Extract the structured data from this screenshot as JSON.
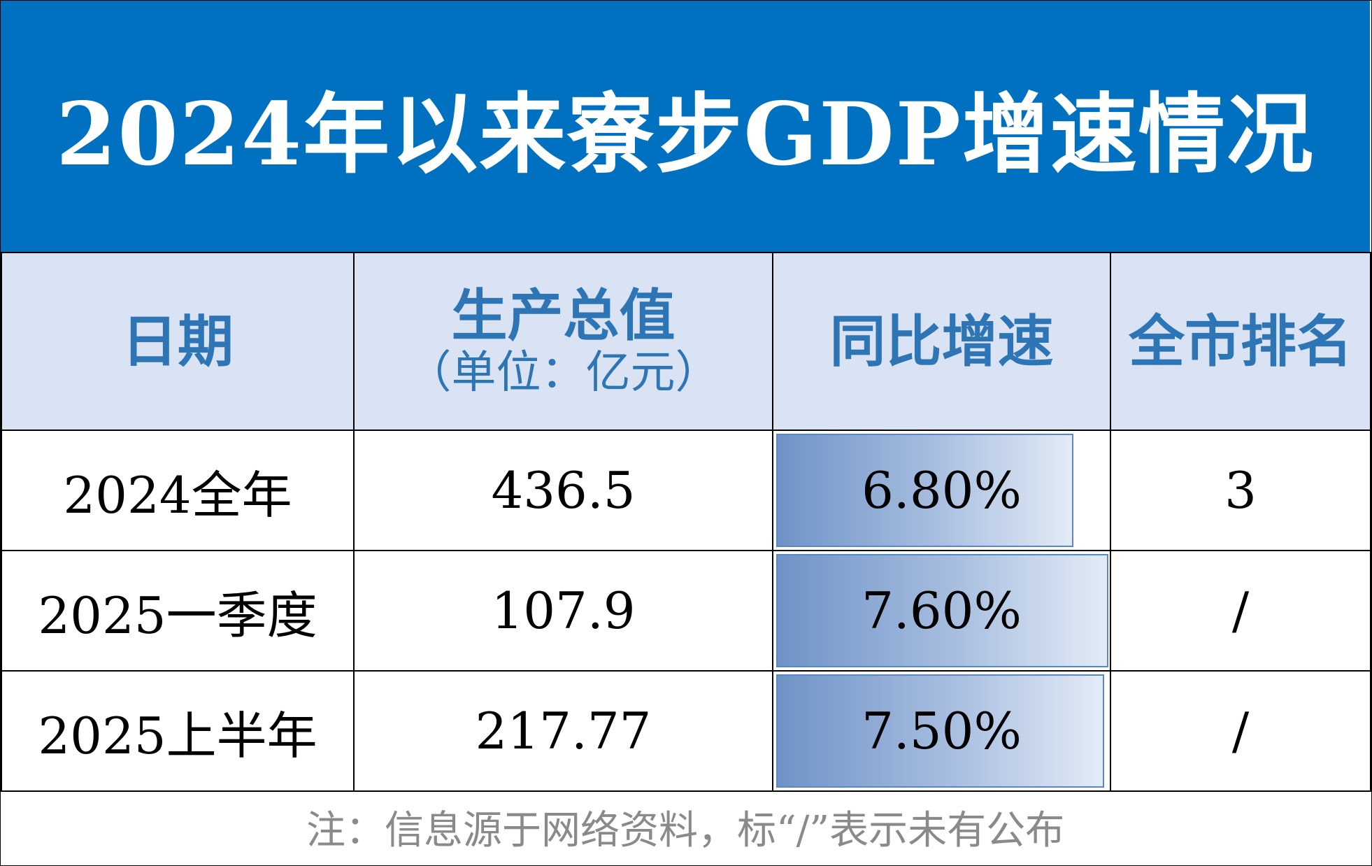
{
  "chart_data": {
    "type": "table",
    "title": "2024年以来寮步GDP增速情况",
    "headers": {
      "date": "日期",
      "value_main": "生产总值",
      "value_sub": "（单位：亿元）",
      "growth": "同比增速",
      "rank": "全市排名"
    },
    "rows": [
      {
        "date": "2024全年",
        "value": "436.5",
        "growth_label": "6.80%",
        "growth": 6.8,
        "rank": "3"
      },
      {
        "date": "2025一季度",
        "value": "107.9",
        "growth_label": "7.60%",
        "growth": 7.6,
        "rank": "/"
      },
      {
        "date": "2025上半年",
        "value": "217.77",
        "growth_label": "7.50%",
        "growth": 7.5,
        "rank": "/"
      }
    ],
    "note": "注：信息源于网络资料，标“/”表示未有公布"
  },
  "colors": {
    "title_bg": "#0070c0",
    "header_bg": "#dae3f3",
    "header_text": "#2e75b6",
    "rank_text": "#e00000",
    "note_text": "#8a8a8a"
  }
}
